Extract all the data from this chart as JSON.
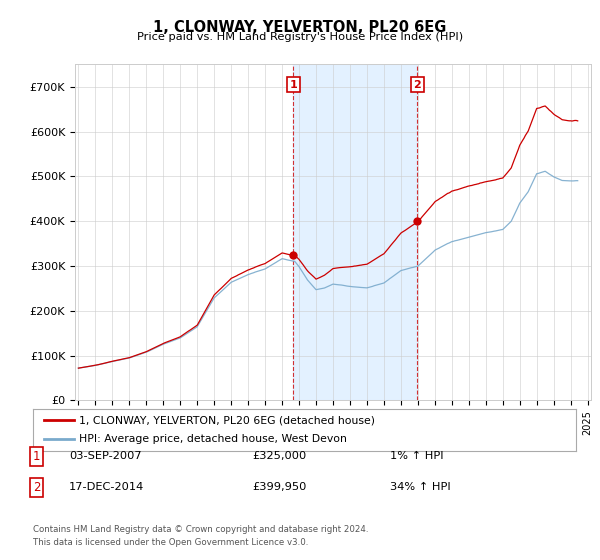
{
  "title": "1, CLONWAY, YELVERTON, PL20 6EG",
  "subtitle": "Price paid vs. HM Land Registry's House Price Index (HPI)",
  "legend_line1": "1, CLONWAY, YELVERTON, PL20 6EG (detached house)",
  "legend_line2": "HPI: Average price, detached house, West Devon",
  "footnote1": "Contains HM Land Registry data © Crown copyright and database right 2024.",
  "footnote2": "This data is licensed under the Open Government Licence v3.0.",
  "transaction1_date": "03-SEP-2007",
  "transaction1_price": "£325,000",
  "transaction1_hpi": "1% ↑ HPI",
  "transaction2_date": "17-DEC-2014",
  "transaction2_price": "£399,950",
  "transaction2_hpi": "34% ↑ HPI",
  "red_color": "#cc0000",
  "blue_color": "#7aaacc",
  "shade_color": "#ddeeff",
  "plot_bg_color": "#ffffff",
  "grid_color": "#cccccc",
  "ylim": [
    0,
    750000
  ],
  "yticks": [
    0,
    100000,
    200000,
    300000,
    400000,
    500000,
    600000,
    700000
  ],
  "ytick_labels": [
    "£0",
    "£100K",
    "£200K",
    "£300K",
    "£400K",
    "£500K",
    "£600K",
    "£700K"
  ],
  "sale1_x": 2007.67,
  "sale1_y": 325000,
  "sale2_x": 2014.96,
  "sale2_y": 399950,
  "xmin": 1994.8,
  "xmax": 2025.2
}
